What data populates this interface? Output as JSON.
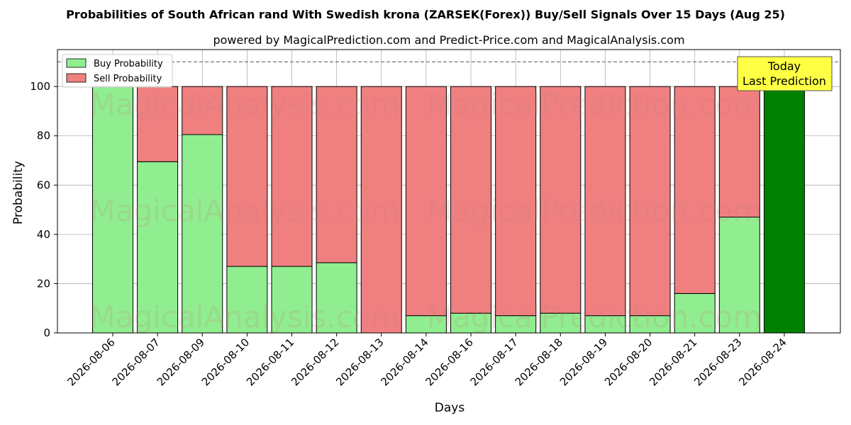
{
  "title": "Probabilities of South African rand With Swedish krona (ZARSEK(Forex)) Buy/Sell Signals Over 15 Days (Aug 25)",
  "subtitle": "powered by MagicalPrediction.com and Predict-Price.com and MagicalAnalysis.com",
  "watermarks": [
    "MagicalAnalysis.com",
    "MagicalPrediction.com"
  ],
  "annotation": {
    "line1": "Today",
    "line2": "Last Prediction"
  },
  "colors": {
    "buy": "#90ee90",
    "sell": "#f08080",
    "today": "#008000",
    "annotation_bg": "#ffff44"
  },
  "chart_data": {
    "type": "bar",
    "stacked": true,
    "title": "Probabilities of South African rand With Swedish krona (ZARSEK(Forex)) Buy/Sell Signals Over 15 Days (Aug 25)",
    "xlabel": "Days",
    "ylabel": "Probability",
    "ylim": [
      0,
      115
    ],
    "yticks": [
      0,
      20,
      40,
      60,
      80,
      100
    ],
    "reference_line": 110,
    "grid": true,
    "legend_position": "top-left",
    "categories": [
      "2026-08-06",
      "2026-08-07",
      "2026-08-09",
      "2026-08-10",
      "2026-08-11",
      "2026-08-12",
      "2026-08-13",
      "2026-08-14",
      "2026-08-16",
      "2026-08-17",
      "2026-08-18",
      "2026-08-19",
      "2026-08-20",
      "2026-08-21",
      "2026-08-23",
      "2026-08-24"
    ],
    "series": [
      {
        "name": "Buy Probability",
        "values": [
          100,
          69.5,
          80.5,
          27,
          27,
          28.5,
          0,
          7,
          8,
          7,
          8,
          7,
          7,
          16,
          47,
          100
        ]
      },
      {
        "name": "Sell Probability",
        "values": [
          0,
          30.5,
          19.5,
          73,
          73,
          71.5,
          100,
          93,
          92,
          93,
          92,
          93,
          93,
          84,
          53,
          0
        ]
      }
    ],
    "highlight_index": 15
  }
}
